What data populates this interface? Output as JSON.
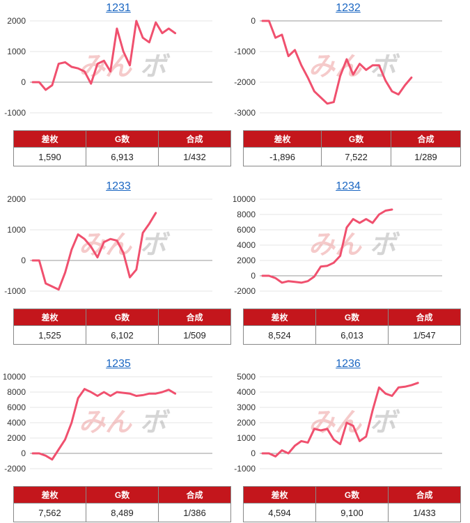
{
  "watermark": {
    "left": "みん",
    "right": "ボ"
  },
  "table_headers": [
    "差枚",
    "G数",
    "合成"
  ],
  "line_color": "#f0506e",
  "panels": [
    {
      "title": "1231",
      "stats": [
        "1,590",
        "6,913",
        "1/432"
      ]
    },
    {
      "title": "1232",
      "stats": [
        "-1,896",
        "7,522",
        "1/289"
      ]
    },
    {
      "title": "1233",
      "stats": [
        "1,525",
        "6,102",
        "1/509"
      ]
    },
    {
      "title": "1234",
      "stats": [
        "8,524",
        "6,013",
        "1/547"
      ]
    },
    {
      "title": "1235",
      "stats": [
        "7,562",
        "8,489",
        "1/386"
      ]
    },
    {
      "title": "1236",
      "stats": [
        "4,594",
        "9,100",
        "1/433"
      ]
    }
  ],
  "chart_data": [
    {
      "type": "line",
      "title": "1231",
      "yticks": [
        2000,
        1000,
        0,
        -1000
      ],
      "ylim": [
        -1000,
        2000
      ],
      "values": [
        0,
        0,
        -250,
        -100,
        600,
        650,
        500,
        450,
        350,
        -50,
        600,
        700,
        350,
        1750,
        1000,
        550,
        2000,
        1450,
        1300,
        1950,
        1600,
        1750,
        1600
      ]
    },
    {
      "type": "line",
      "title": "1232",
      "yticks": [
        0,
        -1000,
        -2000,
        -3000
      ],
      "ylim": [
        -3000,
        0
      ],
      "values": [
        0,
        0,
        -550,
        -450,
        -1150,
        -950,
        -1450,
        -1850,
        -2300,
        -2500,
        -2700,
        -2650,
        -1800,
        -1250,
        -1750,
        -1400,
        -1600,
        -1450,
        -1450,
        -1950,
        -2300,
        -2400,
        -2100,
        -1850
      ]
    },
    {
      "type": "line",
      "title": "1233",
      "yticks": [
        2000,
        1000,
        0,
        -1000
      ],
      "ylim": [
        -1000,
        2000
      ],
      "values": [
        0,
        0,
        -750,
        -850,
        -950,
        -400,
        350,
        850,
        700,
        450,
        100,
        600,
        700,
        650,
        250,
        -550,
        -300,
        900,
        1200,
        1550
      ]
    },
    {
      "type": "line",
      "title": "1234",
      "yticks": [
        10000,
        8000,
        6000,
        4000,
        2000,
        0,
        -2000
      ],
      "ylim": [
        -2000,
        10000
      ],
      "values": [
        0,
        0,
        -300,
        -900,
        -700,
        -800,
        -900,
        -700,
        -100,
        1200,
        1300,
        1700,
        2600,
        6300,
        7400,
        6900,
        7400,
        6900,
        8000,
        8500,
        8650
      ]
    },
    {
      "type": "line",
      "title": "1235",
      "yticks": [
        10000,
        8000,
        6000,
        4000,
        2000,
        0,
        -2000
      ],
      "ylim": [
        -2000,
        10000
      ],
      "values": [
        0,
        0,
        -300,
        -800,
        500,
        1800,
        4000,
        7200,
        8400,
        8000,
        7500,
        8000,
        7500,
        8000,
        7900,
        7800,
        7500,
        7600,
        7800,
        7800,
        8000,
        8300,
        7800
      ]
    },
    {
      "type": "line",
      "title": "1236",
      "yticks": [
        5000,
        4000,
        3000,
        2000,
        1000,
        0,
        -1000
      ],
      "ylim": [
        -1000,
        5000
      ],
      "values": [
        0,
        0,
        -200,
        200,
        0,
        500,
        800,
        700,
        1600,
        1500,
        1600,
        900,
        600,
        2000,
        1800,
        800,
        1100,
        2800,
        4300,
        3900,
        3750,
        4300,
        4350,
        4450,
        4600
      ]
    }
  ]
}
